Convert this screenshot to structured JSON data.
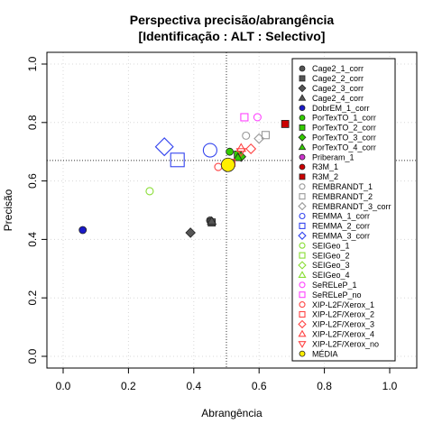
{
  "chart_data": {
    "type": "scatter",
    "title": "Perspectiva precisão/abrangência",
    "subtitle": "[Identificação : ALT : Selectivo]",
    "xlabel": "Abrangência",
    "ylabel": "Precisão",
    "xlim": [
      0,
      1
    ],
    "ylim": [
      0,
      1
    ],
    "x_ticks": [
      "0.0",
      "0.2",
      "0.4",
      "0.6",
      "0.8",
      "1.0"
    ],
    "y_ticks": [
      "0.0",
      "0.2",
      "0.4",
      "0.6",
      "0.8",
      "1.0"
    ],
    "grid": true,
    "reference_lines": {
      "x": 0.5,
      "y": 0.67
    },
    "legend_position": "right",
    "series": [
      {
        "name": "Cage2_1_corr",
        "color": "#555555",
        "marker": "circle-filled",
        "size": "small",
        "points": [
          [
            0.45,
            0.465
          ]
        ]
      },
      {
        "name": "Cage2_2_corr",
        "color": "#555555",
        "marker": "square-filled",
        "size": "small",
        "points": [
          [
            0.455,
            0.458
          ]
        ]
      },
      {
        "name": "Cage2_3_corr",
        "color": "#555555",
        "marker": "diamond-filled",
        "size": "small",
        "points": [
          [
            0.39,
            0.423
          ]
        ]
      },
      {
        "name": "Cage2_4_corr",
        "color": "#555555",
        "marker": "triangle-filled",
        "size": "small",
        "points": [
          [
            0.455,
            0.462
          ]
        ]
      },
      {
        "name": "DobrEM_1_corr",
        "color": "#1a1ac8",
        "marker": "circle-filled",
        "size": "small",
        "points": [
          [
            0.06,
            0.432
          ]
        ]
      },
      {
        "name": "PorTexTO_1_corr",
        "color": "#33cc00",
        "marker": "circle-filled",
        "size": "small",
        "points": [
          [
            0.51,
            0.7
          ]
        ]
      },
      {
        "name": "PorTexTO_2_corr",
        "color": "#33cc00",
        "marker": "square-filled",
        "size": "small",
        "points": [
          [
            0.535,
            0.69
          ]
        ]
      },
      {
        "name": "PorTexTO_3_corr",
        "color": "#33cc00",
        "marker": "diamond-filled",
        "size": "small",
        "points": [
          [
            0.545,
            0.683
          ]
        ]
      },
      {
        "name": "PorTexTO_4_corr",
        "color": "#33cc00",
        "marker": "triangle-filled",
        "size": "small",
        "points": [
          [
            0.535,
            0.68
          ]
        ]
      },
      {
        "name": "Priberam_1",
        "color": "#cc33cc",
        "marker": "circle-filled",
        "size": "small",
        "points": []
      },
      {
        "name": "R3M_1",
        "color": "#cc0000",
        "marker": "circle-filled",
        "size": "small",
        "points": []
      },
      {
        "name": "R3M_2",
        "color": "#cc0000",
        "marker": "square-filled",
        "size": "small",
        "points": [
          [
            0.68,
            0.795
          ]
        ]
      },
      {
        "name": "REMBRANDT_1",
        "color": "#999999",
        "marker": "circle-open",
        "size": "small",
        "points": [
          [
            0.56,
            0.755
          ]
        ]
      },
      {
        "name": "REMBRANDT_2",
        "color": "#999999",
        "marker": "square-open",
        "size": "small",
        "points": [
          [
            0.62,
            0.757
          ]
        ]
      },
      {
        "name": "REMBRANDT_3_corr",
        "color": "#999999",
        "marker": "diamond-open",
        "size": "small",
        "points": [
          [
            0.6,
            0.745
          ]
        ]
      },
      {
        "name": "REMMA_1_corr",
        "color": "#3344ee",
        "marker": "circle-open",
        "size": "large",
        "points": [
          [
            0.45,
            0.705
          ]
        ]
      },
      {
        "name": "REMMA_2_corr",
        "color": "#3344ee",
        "marker": "square-open",
        "size": "large",
        "points": [
          [
            0.35,
            0.672
          ]
        ]
      },
      {
        "name": "REMMA_3_corr",
        "color": "#3344ee",
        "marker": "diamond-open",
        "size": "large",
        "points": [
          [
            0.31,
            0.717
          ]
        ]
      },
      {
        "name": "SEIGeo_1",
        "color": "#88dd33",
        "marker": "circle-open",
        "size": "small",
        "points": [
          [
            0.265,
            0.565
          ]
        ]
      },
      {
        "name": "SEIGeo_2",
        "color": "#88dd33",
        "marker": "square-open",
        "size": "small",
        "points": []
      },
      {
        "name": "SEIGeo_3",
        "color": "#88dd33",
        "marker": "diamond-open",
        "size": "small",
        "points": []
      },
      {
        "name": "SEIGeo_4",
        "color": "#88dd33",
        "marker": "triangle-open",
        "size": "small",
        "points": []
      },
      {
        "name": "SeRELeP_1",
        "color": "#ff44ff",
        "marker": "circle-open",
        "size": "small",
        "points": [
          [
            0.595,
            0.818
          ]
        ]
      },
      {
        "name": "SeRELeP_no",
        "color": "#ff44ff",
        "marker": "square-open",
        "size": "small",
        "points": [
          [
            0.555,
            0.818
          ]
        ]
      },
      {
        "name": "XIP-L2F/Xerox_1",
        "color": "#ff4444",
        "marker": "circle-open",
        "size": "small",
        "points": [
          [
            0.475,
            0.648
          ]
        ]
      },
      {
        "name": "XIP-L2F/Xerox_2",
        "color": "#ff4444",
        "marker": "square-open",
        "size": "small",
        "points": [
          [
            0.515,
            0.662
          ]
        ]
      },
      {
        "name": "XIP-L2F/Xerox_3",
        "color": "#ff4444",
        "marker": "diamond-open",
        "size": "small",
        "points": [
          [
            0.575,
            0.71
          ]
        ]
      },
      {
        "name": "XIP-L2F/Xerox_4",
        "color": "#ff4444",
        "marker": "triangle-open",
        "size": "small",
        "points": [
          [
            0.545,
            0.712
          ]
        ]
      },
      {
        "name": "XIP-L2F/Xerox_no",
        "color": "#ff4444",
        "marker": "triangle-down-open",
        "size": "small",
        "points": [
          [
            0.545,
            0.7
          ]
        ]
      },
      {
        "name": "MÉDIA",
        "color": "#ffee00",
        "marker": "circle-filled",
        "size": "large",
        "points": [
          [
            0.505,
            0.655
          ]
        ]
      }
    ]
  }
}
